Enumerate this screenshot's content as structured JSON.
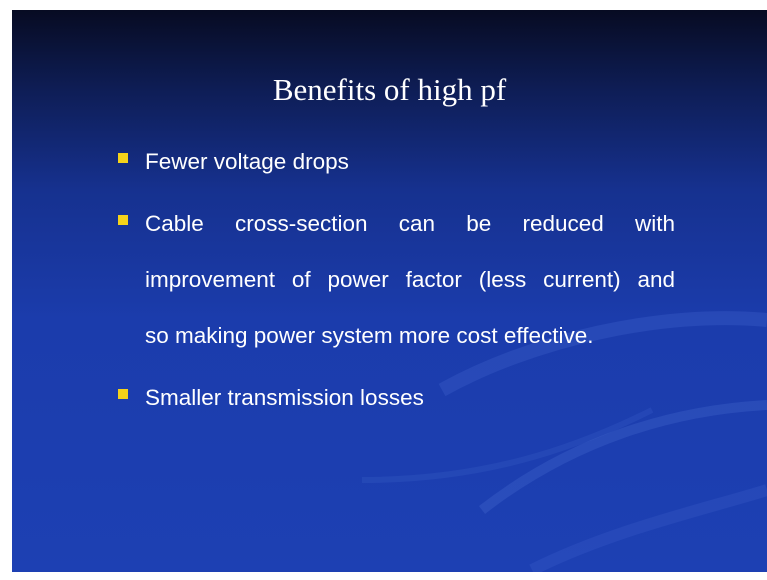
{
  "slide": {
    "title": "Benefits of high pf",
    "bullets": [
      [
        "Fewer voltage drops"
      ],
      [
        "Cable cross-section can be reduced with",
        "improvement of power factor (less current) and",
        "so making power system more cost effective."
      ],
      [
        "Smaller transmission losses"
      ]
    ]
  }
}
